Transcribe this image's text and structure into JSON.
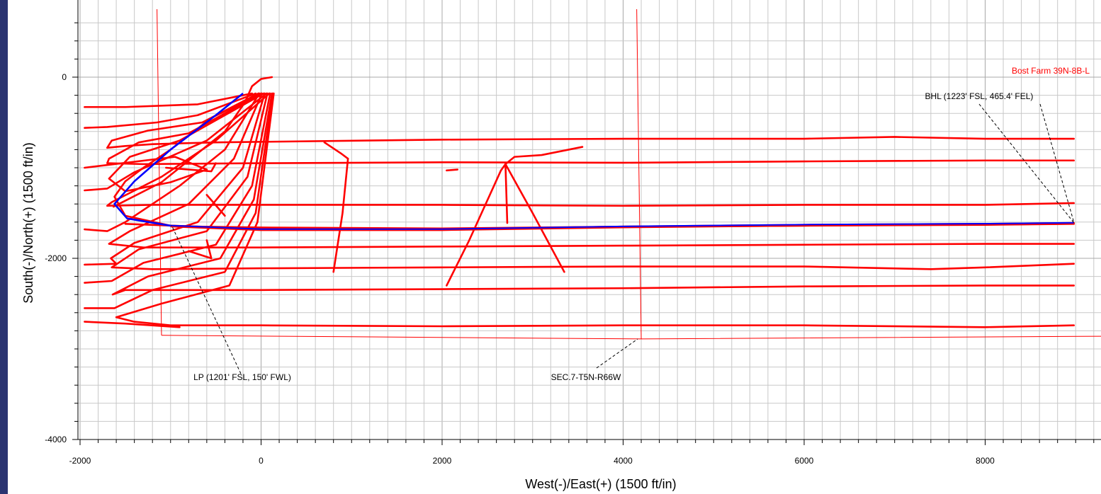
{
  "colors": {
    "sidebar": "#2b3471",
    "grid_minor": "#c8c8c8",
    "grid_major": "#a8a8a8",
    "offset_wells": "#ff0000",
    "plan_well": "#0000ff",
    "section_lines": "#ff0000",
    "annotation_lines": "#000000"
  },
  "chart_data": {
    "type": "line",
    "title": "",
    "xlabel": "West(-)/East(+) (1500 ft/in)",
    "ylabel": "South(-)/North(+) (1500 ft/in)",
    "xlim": [
      -2000,
      9300
    ],
    "ylim": [
      -4100,
      750
    ],
    "x_ticks": [
      -2000,
      0,
      2000,
      4000,
      6000,
      8000
    ],
    "y_ticks": [
      0,
      -2000,
      -4000
    ],
    "x_tick_labels": [
      "-2000",
      "0",
      "2000",
      "4000",
      "6000",
      "8000"
    ],
    "y_tick_labels": [
      "0",
      "-2000",
      "-4000"
    ],
    "grid": true,
    "minor_grid_spacing": 200,
    "well_label": "Bost Farm 39N-8B-L",
    "annotations": [
      {
        "text": "BHL (1223' FSL, 465.4' FEL)",
        "anchor": [
          8980,
          -1610
        ],
        "label_at": [
          7500,
          -220
        ]
      },
      {
        "text": "LP (1201' FSL, 150' FWL)",
        "anchor": [
          -1000,
          -1650
        ],
        "label_at": [
          -500,
          -3300
        ]
      },
      {
        "text": "SEC.7-T5N-R66W",
        "anchor": [
          4180,
          -2890
        ],
        "label_at": [
          3800,
          -3300
        ]
      }
    ],
    "section_lines": [
      {
        "name": "section-boundary-west",
        "points": [
          [
            -1150,
            750
          ],
          [
            -1100,
            -2850
          ]
        ]
      },
      {
        "name": "section-boundary-east",
        "points": [
          [
            4150,
            750
          ],
          [
            4200,
            -2890
          ]
        ]
      },
      {
        "name": "section-boundary-south",
        "points": [
          [
            -1100,
            -2850
          ],
          [
            4200,
            -2890
          ],
          [
            9300,
            -2860
          ]
        ]
      }
    ],
    "series": [
      {
        "points": [
          [
            0,
            -180
          ],
          [
            -550,
            -450
          ],
          [
            -1000,
            -800
          ],
          [
            -1300,
            -1000
          ],
          [
            -1500,
            -1150
          ],
          [
            -1620,
            -1320
          ],
          [
            -1500,
            -1530
          ],
          [
            -1000,
            -1640
          ],
          [
            0,
            -1670
          ],
          [
            2000,
            -1680
          ],
          [
            4000,
            -1650
          ],
          [
            6000,
            -1630
          ],
          [
            8000,
            -1620
          ],
          [
            8980,
            -1610
          ]
        ]
      },
      {
        "points": [
          [
            -100,
            -180
          ],
          [
            -700,
            -300
          ],
          [
            -1500,
            -330
          ],
          [
            -1950,
            -330
          ]
        ]
      },
      {
        "points": [
          [
            -60,
            -180
          ],
          [
            -700,
            -420
          ],
          [
            -1150,
            -500
          ],
          [
            -1700,
            -550
          ],
          [
            -1950,
            -560
          ]
        ]
      },
      {
        "points": [
          [
            -30,
            -180
          ],
          [
            -650,
            -500
          ],
          [
            -1250,
            -590
          ],
          [
            -1650,
            -700
          ],
          [
            -1700,
            -780
          ],
          [
            -1500,
            -760
          ],
          [
            -1200,
            -740
          ],
          [
            -500,
            -720
          ],
          [
            2000,
            -690
          ],
          [
            4000,
            -680
          ],
          [
            6000,
            -680
          ],
          [
            7000,
            -660
          ],
          [
            8000,
            -680
          ],
          [
            8980,
            -680
          ]
        ]
      },
      {
        "points": [
          [
            0,
            -180
          ],
          [
            -800,
            -620
          ],
          [
            -1350,
            -720
          ],
          [
            -1680,
            -900
          ],
          [
            -1700,
            -950
          ],
          [
            -1300,
            -960
          ],
          [
            0,
            -950
          ],
          [
            2000,
            -940
          ],
          [
            4000,
            -945
          ],
          [
            6000,
            -930
          ],
          [
            8000,
            -920
          ],
          [
            8980,
            -920
          ]
        ]
      },
      {
        "points": [
          [
            30,
            -180
          ],
          [
            -900,
            -700
          ],
          [
            -1450,
            -880
          ],
          [
            -1680,
            -1120
          ],
          [
            -1500,
            -1260
          ],
          [
            -1000,
            -1160
          ],
          [
            -600,
            -1020
          ],
          [
            -950,
            -880
          ],
          [
            -1950,
            -1000
          ]
        ]
      },
      {
        "points": [
          [
            60,
            -180
          ],
          [
            -600,
            -700
          ],
          [
            -1400,
            -1050
          ],
          [
            -1700,
            -1230
          ],
          [
            -1950,
            -1250
          ]
        ]
      },
      {
        "points": [
          [
            90,
            -180
          ],
          [
            -500,
            -700
          ],
          [
            -1100,
            -1100
          ],
          [
            -1650,
            -1380
          ],
          [
            -1700,
            -1420
          ],
          [
            -1200,
            -1410
          ],
          [
            0,
            -1410
          ],
          [
            2000,
            -1410
          ],
          [
            4000,
            -1420
          ],
          [
            6000,
            -1410
          ],
          [
            8000,
            -1410
          ],
          [
            8980,
            -1390
          ]
        ]
      },
      {
        "points": [
          [
            -20,
            -180
          ],
          [
            -400,
            -800
          ],
          [
            -900,
            -1200
          ],
          [
            -1500,
            -1600
          ],
          [
            -1700,
            -1700
          ],
          [
            -1950,
            -1680
          ]
        ]
      },
      {
        "points": [
          [
            10,
            -180
          ],
          [
            -300,
            -900
          ],
          [
            -800,
            -1400
          ],
          [
            -1450,
            -1700
          ],
          [
            -1680,
            -1840
          ],
          [
            -1300,
            -1880
          ],
          [
            0,
            -1880
          ],
          [
            2000,
            -1870
          ],
          [
            4000,
            -1860
          ],
          [
            6000,
            -1850
          ],
          [
            8000,
            -1840
          ],
          [
            8980,
            -1840
          ]
        ]
      },
      {
        "points": [
          [
            40,
            -180
          ],
          [
            -200,
            -1000
          ],
          [
            -700,
            -1600
          ],
          [
            -1400,
            -1830
          ],
          [
            -1660,
            -2000
          ],
          [
            -1600,
            -2060
          ],
          [
            -1950,
            -2070
          ]
        ]
      },
      {
        "points": [
          [
            70,
            -180
          ],
          [
            -150,
            -1100
          ],
          [
            -600,
            -1700
          ],
          [
            -1350,
            -1900
          ],
          [
            -1650,
            -2100
          ],
          [
            -1200,
            -2120
          ],
          [
            0,
            -2110
          ],
          [
            2000,
            -2100
          ],
          [
            4000,
            -2090
          ],
          [
            6000,
            -2090
          ],
          [
            7400,
            -2120
          ],
          [
            8000,
            -2100
          ],
          [
            8980,
            -2060
          ]
        ]
      },
      {
        "points": [
          [
            100,
            -180
          ],
          [
            -100,
            -1200
          ],
          [
            -500,
            -1850
          ],
          [
            -1300,
            -2050
          ],
          [
            -1650,
            -2250
          ],
          [
            -1950,
            -2270
          ]
        ]
      },
      {
        "points": [
          [
            120,
            -180
          ],
          [
            -80,
            -1350
          ],
          [
            -450,
            -2000
          ],
          [
            -1250,
            -2200
          ],
          [
            -1640,
            -2400
          ],
          [
            -1500,
            -2350
          ],
          [
            -800,
            -2350
          ],
          [
            0,
            -2350
          ],
          [
            2000,
            -2340
          ],
          [
            4000,
            -2330
          ],
          [
            6000,
            -2310
          ],
          [
            8000,
            -2300
          ],
          [
            8980,
            -2300
          ]
        ]
      },
      {
        "points": [
          [
            130,
            -180
          ],
          [
            -60,
            -1500
          ],
          [
            -400,
            -2150
          ],
          [
            -1200,
            -2350
          ],
          [
            -1620,
            -2550
          ],
          [
            -1950,
            -2550
          ]
        ]
      },
      {
        "points": [
          [
            140,
            -180
          ],
          [
            -40,
            -1600
          ],
          [
            -350,
            -2300
          ],
          [
            -1100,
            -2500
          ],
          [
            -1600,
            -2650
          ],
          [
            -1400,
            -2700
          ],
          [
            -1000,
            -2740
          ],
          [
            0,
            -2740
          ],
          [
            2000,
            -2750
          ],
          [
            4000,
            -2740
          ],
          [
            6000,
            -2740
          ],
          [
            8000,
            -2760
          ],
          [
            8980,
            -2740
          ]
        ]
      },
      {
        "points": [
          [
            -1950,
            -2700
          ],
          [
            -1500,
            -2720
          ],
          [
            -900,
            -2760
          ]
        ]
      },
      {
        "points": [
          [
            -1500,
            -1620
          ],
          [
            -700,
            -1650
          ],
          [
            0,
            -1660
          ],
          [
            2000,
            -1670
          ],
          [
            4000,
            -1650
          ],
          [
            6000,
            -1640
          ],
          [
            8000,
            -1630
          ],
          [
            8980,
            -1620
          ]
        ]
      },
      {
        "points": [
          [
            -1630,
            -1430
          ],
          [
            -1100,
            -1160
          ],
          [
            -900,
            -1000
          ],
          [
            -400,
            -600
          ],
          [
            -180,
            -280
          ],
          [
            -100,
            -100
          ],
          [
            0,
            -20
          ],
          [
            60,
            -10
          ],
          [
            120,
            0
          ]
        ]
      },
      {
        "points": [
          [
            -600,
            -1300
          ],
          [
            -400,
            -1530
          ]
        ]
      },
      {
        "points": [
          [
            -1050,
            -1000
          ],
          [
            -550,
            -1040
          ],
          [
            -500,
            -950
          ]
        ]
      },
      {
        "points": [
          [
            -800,
            -1920
          ],
          [
            -550,
            -2000
          ],
          [
            -600,
            -1800
          ]
        ]
      },
      {
        "points": [
          [
            700,
            -720
          ],
          [
            880,
            -840
          ],
          [
            960,
            -900
          ]
        ]
      },
      {
        "points": [
          [
            960,
            -900
          ],
          [
            900,
            -1500
          ],
          [
            800,
            -2150
          ]
        ]
      },
      {
        "points": [
          [
            2050,
            -1030
          ],
          [
            2170,
            -1020
          ]
        ]
      },
      {
        "points": [
          [
            2050,
            -2300
          ],
          [
            2300,
            -1800
          ],
          [
            2650,
            -1030
          ],
          [
            2700,
            -960
          ]
        ]
      },
      {
        "points": [
          [
            2700,
            -960
          ],
          [
            3000,
            -1500
          ],
          [
            3350,
            -2150
          ]
        ]
      },
      {
        "points": [
          [
            2700,
            -960
          ],
          [
            2720,
            -1610
          ]
        ]
      },
      {
        "points": [
          [
            2700,
            -960
          ],
          [
            2800,
            -880
          ],
          [
            3100,
            -860
          ],
          [
            3550,
            -770
          ]
        ]
      }
    ],
    "plan_series": [
      {
        "points": [
          [
            -200,
            -180
          ],
          [
            -500,
            -420
          ],
          [
            -1000,
            -800
          ],
          [
            -1400,
            -1150
          ],
          [
            -1620,
            -1400
          ],
          [
            -1480,
            -1560
          ],
          [
            -1000,
            -1640
          ],
          [
            0,
            -1680
          ],
          [
            2000,
            -1680
          ],
          [
            4000,
            -1650
          ],
          [
            6000,
            -1630
          ],
          [
            8000,
            -1620
          ],
          [
            8980,
            -1610
          ]
        ]
      }
    ]
  }
}
